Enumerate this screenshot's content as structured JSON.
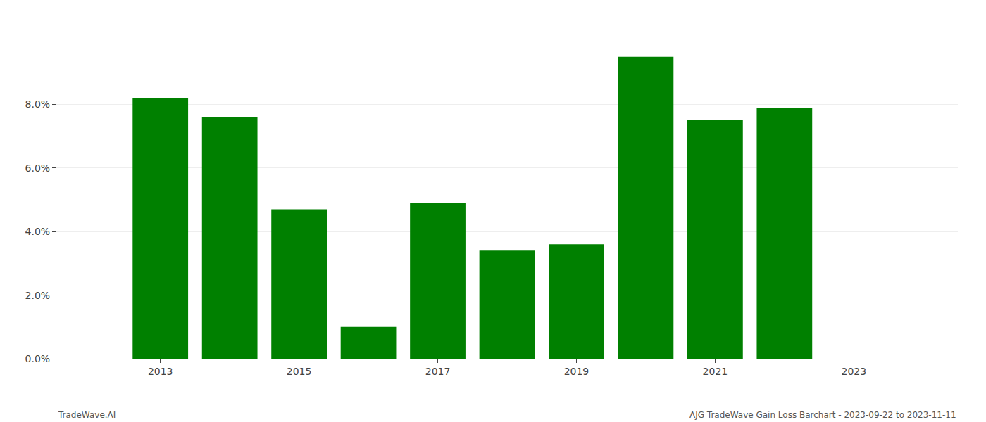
{
  "chart_data": {
    "type": "bar",
    "x": [
      2013,
      2014,
      2015,
      2016,
      2017,
      2018,
      2019,
      2020,
      2021,
      2022,
      2023
    ],
    "values": [
      0.082,
      0.076,
      0.047,
      0.01,
      0.049,
      0.034,
      0.036,
      0.095,
      0.075,
      0.079,
      null
    ],
    "color": "#008000",
    "xlim": [
      2011.5,
      2024.5
    ],
    "xticks": [
      2013,
      2015,
      2017,
      2019,
      2021,
      2023
    ],
    "ylim": [
      0,
      0.104
    ],
    "yticks": [
      {
        "value": 0.0,
        "label": "0.0%"
      },
      {
        "value": 0.02,
        "label": "2.0%"
      },
      {
        "value": 0.04,
        "label": "4.0%"
      },
      {
        "value": 0.06,
        "label": "6.0%"
      },
      {
        "value": 0.08,
        "label": "8.0%"
      }
    ],
    "grid": true,
    "annotations": [
      "TradeWave.AI",
      "AJG TradeWave Gain Loss Barchart - 2023-09-22 to 2023-11-11"
    ]
  }
}
